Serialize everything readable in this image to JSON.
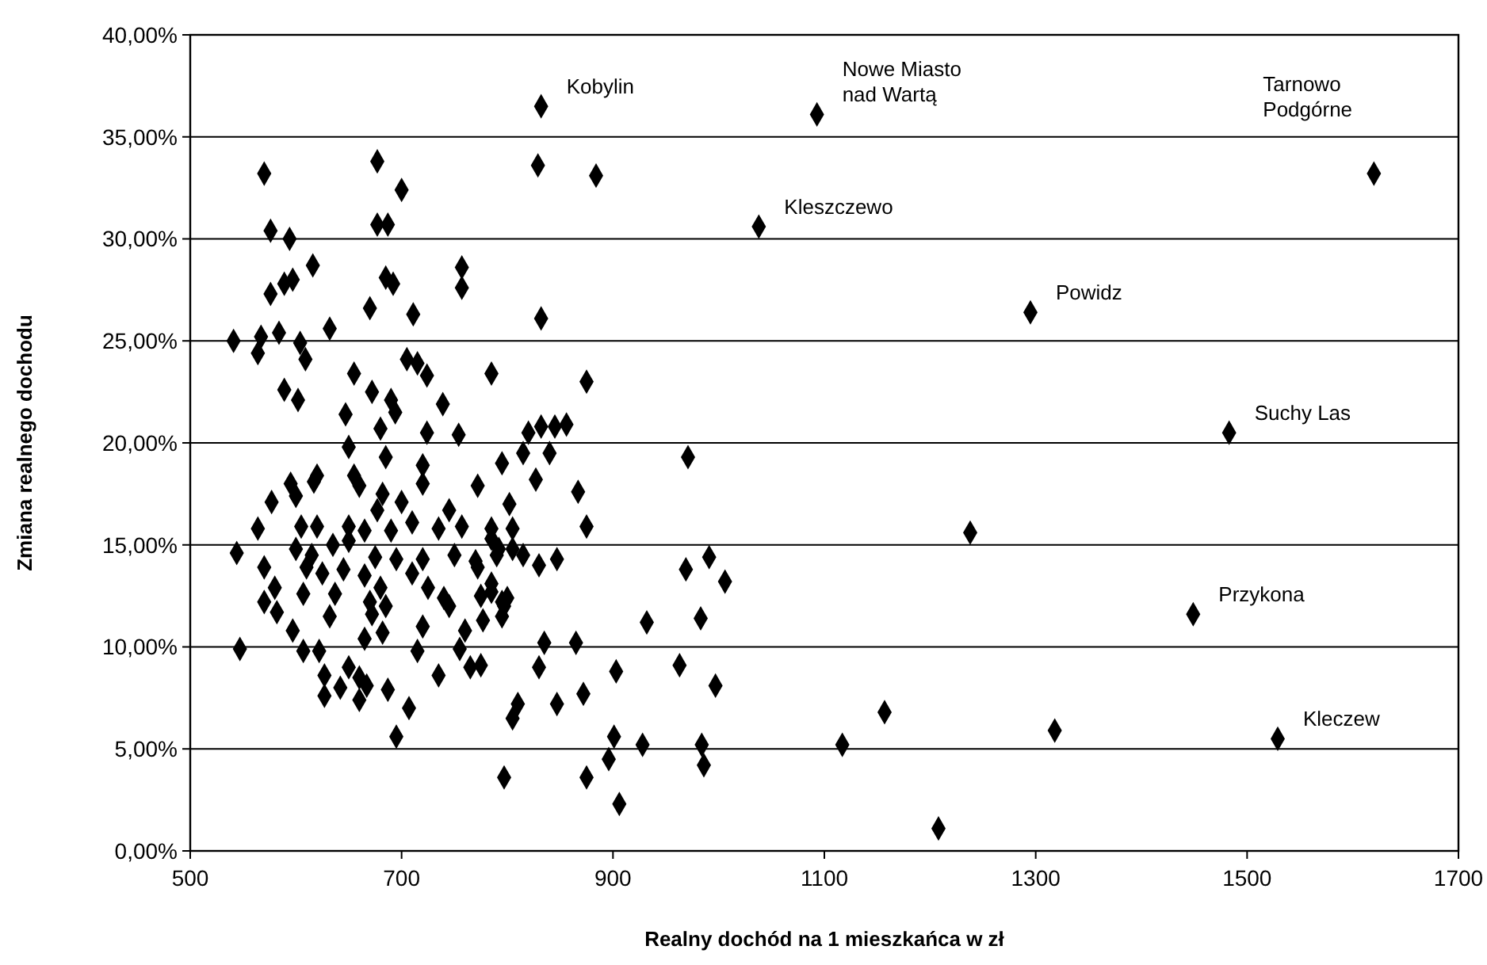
{
  "chart_data": {
    "type": "scatter",
    "xlabel": "Realny dochód na 1 mieszkańca w zł",
    "ylabel": "Zmiana realnego dochodu",
    "marker": "diamond",
    "grid": "y",
    "xlim": [
      500,
      1700
    ],
    "xticks": [
      500,
      700,
      900,
      1100,
      1300,
      1500,
      1700
    ],
    "ylim": [
      0,
      40
    ],
    "yticks": [
      {
        "value": 0,
        "label": "0,00%"
      },
      {
        "value": 5,
        "label": "5,00%"
      },
      {
        "value": 10,
        "label": "10,00%"
      },
      {
        "value": 15,
        "label": "15,00%"
      },
      {
        "value": 20,
        "label": "20,00%"
      },
      {
        "value": 25,
        "label": "25,00%"
      },
      {
        "value": 30,
        "label": "30,00%"
      },
      {
        "value": 35,
        "label": "35,00%"
      },
      {
        "value": 40,
        "label": "40,00%"
      }
    ],
    "series": [
      {
        "color": "#000000",
        "x": [
          1620,
          1295,
          1483,
          1238,
          1449,
          1157,
          1117,
          1318,
          1529,
          1208,
          1038,
          1093,
          832,
          829,
          884,
          832,
          785,
          875,
          820,
          832,
          845,
          856,
          795,
          815,
          840,
          971,
          827,
          867,
          570,
          677,
          700,
          677,
          687,
          576,
          594,
          616,
          757,
          757,
          685,
          692,
          597,
          589,
          576,
          670,
          711,
          632,
          541,
          567,
          584,
          564,
          604,
          609,
          705,
          715,
          724,
          655,
          589,
          602,
          672,
          690,
          694,
          739,
          647,
          680,
          724,
          754,
          595,
          617,
          660,
          682,
          720,
          772,
          577,
          600,
          677,
          700,
          745,
          605,
          620,
          650,
          665,
          690,
          710,
          735,
          757,
          785,
          600,
          615,
          635,
          650,
          675,
          695,
          720,
          750,
          770,
          790,
          610,
          625,
          645,
          665,
          680,
          710,
          725,
          740,
          772,
          785,
          580,
          607,
          637,
          670,
          685,
          745,
          775,
          795,
          570,
          582,
          632,
          672,
          720,
          760,
          777,
          597,
          665,
          682,
          547,
          607,
          622,
          715,
          755,
          627,
          650,
          660,
          667,
          735,
          765,
          775,
          627,
          642,
          660,
          687,
          707,
          695,
          564,
          544,
          570,
          802,
          875,
          805,
          785,
          792,
          805,
          815,
          830,
          847,
          785,
          800,
          797,
          795,
          835,
          865,
          830,
          903,
          872,
          847,
          810,
          805,
          969,
          991,
          1006,
          932,
          983,
          963,
          997,
          901,
          928,
          984,
          896,
          986,
          797,
          875,
          906,
          650,
          685,
          720,
          620,
          655
        ],
        "values": [
          33.2,
          26.4,
          20.5,
          15.6,
          11.6,
          6.8,
          5.2,
          5.9,
          5.5,
          1.1,
          30.6,
          36.1,
          36.5,
          33.6,
          33.1,
          26.1,
          23.4,
          23.0,
          20.5,
          20.8,
          20.8,
          20.9,
          19.0,
          19.5,
          19.5,
          19.3,
          18.2,
          17.6,
          33.2,
          33.8,
          32.4,
          30.7,
          30.7,
          30.4,
          30.0,
          28.7,
          28.6,
          27.6,
          28.1,
          27.8,
          28.0,
          27.8,
          27.3,
          26.6,
          26.3,
          25.6,
          25.0,
          25.2,
          25.4,
          24.4,
          24.9,
          24.1,
          24.1,
          23.9,
          23.3,
          23.4,
          22.6,
          22.1,
          22.5,
          22.1,
          21.5,
          21.9,
          21.4,
          20.7,
          20.5,
          20.4,
          18.0,
          18.1,
          17.9,
          17.5,
          18.0,
          17.9,
          17.1,
          17.4,
          16.7,
          17.1,
          16.7,
          15.9,
          15.9,
          15.9,
          15.7,
          15.7,
          16.1,
          15.8,
          15.9,
          15.8,
          14.8,
          14.5,
          15.0,
          15.2,
          14.4,
          14.3,
          14.3,
          14.5,
          14.2,
          14.5,
          13.9,
          13.6,
          13.8,
          13.5,
          12.9,
          13.6,
          12.9,
          12.4,
          13.9,
          12.7,
          12.9,
          12.6,
          12.6,
          12.2,
          12.0,
          12.0,
          12.5,
          12.2,
          12.2,
          11.7,
          11.5,
          11.6,
          11.0,
          10.8,
          11.3,
          10.8,
          10.4,
          10.7,
          9.9,
          9.8,
          9.8,
          9.8,
          9.9,
          8.6,
          9.0,
          8.5,
          8.1,
          8.6,
          9.0,
          9.1,
          7.6,
          8.0,
          7.4,
          7.9,
          7.0,
          5.6,
          15.8,
          14.6,
          13.9,
          17.0,
          15.9,
          15.8,
          15.3,
          14.8,
          14.8,
          14.5,
          14.0,
          14.3,
          13.1,
          12.4,
          12.0,
          11.5,
          10.2,
          10.2,
          9.0,
          8.8,
          7.7,
          7.2,
          7.2,
          6.5,
          13.8,
          14.4,
          13.2,
          11.2,
          11.4,
          9.1,
          8.1,
          5.6,
          5.2,
          5.2,
          4.5,
          4.2,
          3.6,
          3.6,
          2.3,
          19.8,
          19.3,
          18.9,
          18.4,
          18.4
        ]
      }
    ],
    "annotations": [
      {
        "text": "Tarnowo Podgórne",
        "x": 1620,
        "y": 33.2
      },
      {
        "text": "Powidz",
        "x": 1295,
        "y": 26.4
      },
      {
        "text": "Suchy Las",
        "x": 1483,
        "y": 20.5
      },
      {
        "text": "Przykona",
        "x": 1449,
        "y": 11.6
      },
      {
        "text": "Kleczew",
        "x": 1529,
        "y": 5.5
      },
      {
        "text": "Kleszczewo",
        "x": 1038,
        "y": 30.6
      },
      {
        "text": "Nowe Miasto nad Wartą",
        "x": 1093,
        "y": 36.1
      },
      {
        "text": "Kobylin",
        "x": 832,
        "y": 36.5
      }
    ]
  }
}
